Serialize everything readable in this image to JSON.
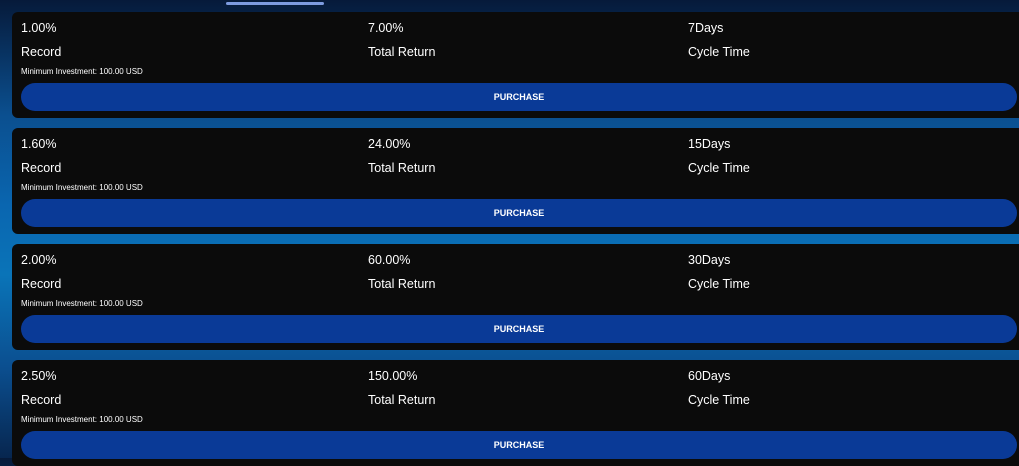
{
  "labels": {
    "record": "Record",
    "total_return": "Total Return",
    "cycle_time": "Cycle Time",
    "purchase": "PURCHASE"
  },
  "plans": [
    {
      "rate": "1.00%",
      "total_return": "7.00%",
      "cycle": "7Days",
      "min_investment": "Minimum Investment: 100.00 USD"
    },
    {
      "rate": "1.60%",
      "total_return": "24.00%",
      "cycle": "15Days",
      "min_investment": "Minimum Investment: 100.00 USD"
    },
    {
      "rate": "2.00%",
      "total_return": "60.00%",
      "cycle": "30Days",
      "min_investment": "Minimum Investment: 100.00 USD"
    },
    {
      "rate": "2.50%",
      "total_return": "150.00%",
      "cycle": "60Days",
      "min_investment": "Minimum Investment: 100.00 USD"
    }
  ]
}
